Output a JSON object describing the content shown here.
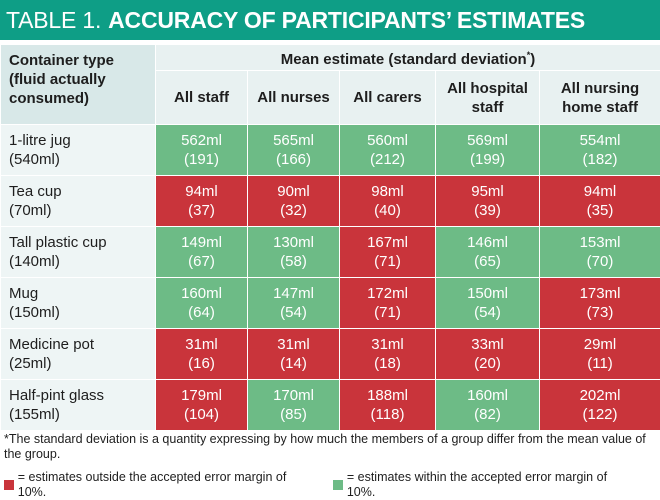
{
  "title": {
    "prefix": "TABLE 1.",
    "main": "ACCURACY OF PARTICIPANTS’ ESTIMATES"
  },
  "header": {
    "container_col": [
      "Container type",
      "(fluid actually",
      "consumed)"
    ],
    "group_label": "Mean estimate (standard deviation*)",
    "columns": [
      [
        "All staff"
      ],
      [
        "All nurses"
      ],
      [
        "All carers"
      ],
      [
        "All hospital",
        "staff"
      ],
      [
        "All nursing",
        "home staff"
      ]
    ]
  },
  "colors": {
    "outside": "#c9343b",
    "within": "#6dbb86"
  },
  "rows": [
    {
      "container": "1-litre jug",
      "actual": "(540ml)",
      "cells": [
        {
          "mean": "562ml",
          "sd": "(191)",
          "status": "within"
        },
        {
          "mean": "565ml",
          "sd": "(166)",
          "status": "within"
        },
        {
          "mean": "560ml",
          "sd": "(212)",
          "status": "within"
        },
        {
          "mean": "569ml",
          "sd": "(199)",
          "status": "within"
        },
        {
          "mean": "554ml",
          "sd": "(182)",
          "status": "within"
        }
      ]
    },
    {
      "container": "Tea cup",
      "actual": "(70ml)",
      "cells": [
        {
          "mean": "94ml",
          "sd": "(37)",
          "status": "outside"
        },
        {
          "mean": "90ml",
          "sd": "(32)",
          "status": "outside"
        },
        {
          "mean": "98ml",
          "sd": "(40)",
          "status": "outside"
        },
        {
          "mean": "95ml",
          "sd": "(39)",
          "status": "outside"
        },
        {
          "mean": "94ml",
          "sd": "(35)",
          "status": "outside"
        }
      ]
    },
    {
      "container": "Tall plastic cup",
      "actual": "(140ml)",
      "cells": [
        {
          "mean": "149ml",
          "sd": "(67)",
          "status": "within"
        },
        {
          "mean": "130ml",
          "sd": "(58)",
          "status": "within"
        },
        {
          "mean": "167ml",
          "sd": "(71)",
          "status": "outside"
        },
        {
          "mean": "146ml",
          "sd": "(65)",
          "status": "within"
        },
        {
          "mean": "153ml",
          "sd": "(70)",
          "status": "within"
        }
      ]
    },
    {
      "container": "Mug",
      "actual": "(150ml)",
      "cells": [
        {
          "mean": "160ml",
          "sd": "(64)",
          "status": "within"
        },
        {
          "mean": "147ml",
          "sd": "(54)",
          "status": "within"
        },
        {
          "mean": "172ml",
          "sd": "(71)",
          "status": "outside"
        },
        {
          "mean": "150ml",
          "sd": "(54)",
          "status": "within"
        },
        {
          "mean": "173ml",
          "sd": "(73)",
          "status": "outside"
        }
      ]
    },
    {
      "container": "Medicine pot",
      "actual": "(25ml)",
      "cells": [
        {
          "mean": "31ml",
          "sd": "(16)",
          "status": "outside"
        },
        {
          "mean": "31ml",
          "sd": "(14)",
          "status": "outside"
        },
        {
          "mean": "31ml",
          "sd": "(18)",
          "status": "outside"
        },
        {
          "mean": "33ml",
          "sd": "(20)",
          "status": "outside"
        },
        {
          "mean": "29ml",
          "sd": "(11)",
          "status": "outside"
        }
      ]
    },
    {
      "container": "Half-pint glass",
      "actual": "(155ml)",
      "cells": [
        {
          "mean": "179ml",
          "sd": "(104)",
          "status": "outside"
        },
        {
          "mean": "170ml",
          "sd": "(85)",
          "status": "within"
        },
        {
          "mean": "188ml",
          "sd": "(118)",
          "status": "outside"
        },
        {
          "mean": "160ml",
          "sd": "(82)",
          "status": "within"
        },
        {
          "mean": "202ml",
          "sd": "(122)",
          "status": "outside"
        }
      ]
    }
  ],
  "footnote": "*The standard deviation is a quantity expressing by how much the members of a group differ from the mean value of the group.",
  "legend": {
    "outside_text": "= estimates outside the accepted error margin of 10%.",
    "within_text": "= estimates within the accepted error margin of 10%."
  }
}
